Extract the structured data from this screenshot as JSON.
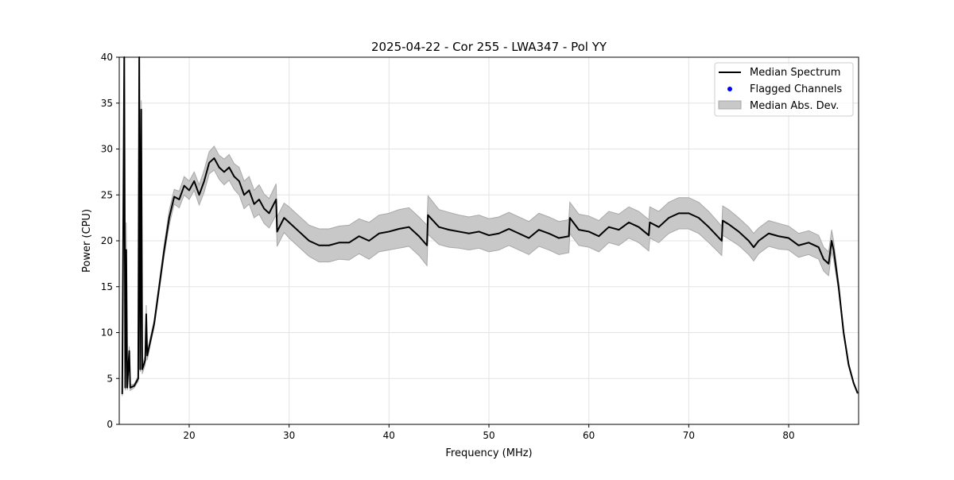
{
  "chart_data": {
    "type": "line",
    "title": "2025-04-22 - Cor 255 - LWA347 - Pol YY",
    "xlabel": "Frequency (MHz)",
    "ylabel": "Power (CPU)",
    "xlim": [
      13,
      87
    ],
    "ylim": [
      0,
      40
    ],
    "xticks": [
      20,
      30,
      40,
      50,
      60,
      70,
      80
    ],
    "yticks": [
      0,
      5,
      10,
      15,
      20,
      25,
      30,
      35,
      40
    ],
    "grid": true,
    "legend": {
      "placement": "top-right",
      "entries": [
        "Median Spectrum",
        "Flagged Channels",
        "Median Abs. Dev."
      ]
    },
    "colors": {
      "median": "#000000",
      "flagged": "#0000ff",
      "mad_fill": "#c8c8c8",
      "mad_edge": "#a0a0a0"
    },
    "series_fields": [
      "frequency_mhz",
      "median_power",
      "median_abs_dev"
    ],
    "points": [
      [
        13.3,
        3.3,
        0.2
      ],
      [
        13.5,
        40,
        0.5
      ],
      [
        13.6,
        4,
        0.3
      ],
      [
        13.7,
        19,
        3
      ],
      [
        13.8,
        4,
        0.3
      ],
      [
        14.0,
        8,
        0.5
      ],
      [
        14.1,
        4,
        0.3
      ],
      [
        14.5,
        4.2,
        0.2
      ],
      [
        14.9,
        5,
        0.3
      ],
      [
        15.0,
        40,
        0.5
      ],
      [
        15.1,
        6,
        0.3
      ],
      [
        15.2,
        34.3,
        1
      ],
      [
        15.3,
        6,
        0.5
      ],
      [
        15.6,
        7,
        0.5
      ],
      [
        15.7,
        12,
        1
      ],
      [
        15.8,
        7.5,
        0.5
      ],
      [
        16,
        8.5,
        0.4
      ],
      [
        16.5,
        11,
        0.4
      ],
      [
        17,
        15,
        0.5
      ],
      [
        17.5,
        19,
        0.6
      ],
      [
        18,
        22.5,
        0.8
      ],
      [
        18.5,
        24.8,
        0.8
      ],
      [
        19,
        24.5,
        0.9
      ],
      [
        19.5,
        26,
        1
      ],
      [
        20,
        25.5,
        1
      ],
      [
        20.5,
        26.5,
        1
      ],
      [
        21,
        25,
        1.1
      ],
      [
        21.5,
        26.5,
        1.2
      ],
      [
        22,
        28.5,
        1.2
      ],
      [
        22.5,
        29,
        1.3
      ],
      [
        23,
        28,
        1.3
      ],
      [
        23.5,
        27.5,
        1.4
      ],
      [
        24,
        28,
        1.4
      ],
      [
        24.5,
        27,
        1.4
      ],
      [
        25,
        26.5,
        1.5
      ],
      [
        25.5,
        25,
        1.5
      ],
      [
        26,
        25.5,
        1.5
      ],
      [
        26.5,
        24,
        1.5
      ],
      [
        27,
        24.5,
        1.6
      ],
      [
        27.5,
        23.5,
        1.6
      ],
      [
        28,
        23,
        1.6
      ],
      [
        28.7,
        24.5,
        1.7
      ],
      [
        28.8,
        21,
        1.6
      ],
      [
        29.5,
        22.5,
        1.6
      ],
      [
        30,
        22,
        1.7
      ],
      [
        31,
        21,
        1.7
      ],
      [
        32,
        20,
        1.7
      ],
      [
        33,
        19.5,
        1.8
      ],
      [
        34,
        19.5,
        1.8
      ],
      [
        35,
        19.8,
        1.8
      ],
      [
        36,
        19.8,
        1.9
      ],
      [
        37,
        20.5,
        1.9
      ],
      [
        38,
        20,
        2
      ],
      [
        39,
        20.8,
        2
      ],
      [
        40,
        21,
        2
      ],
      [
        41,
        21.3,
        2.1
      ],
      [
        42,
        21.5,
        2.1
      ],
      [
        43,
        20.5,
        2.1
      ],
      [
        43.8,
        19.5,
        2.2
      ],
      [
        43.9,
        22.8,
        2.1
      ],
      [
        45,
        21.5,
        1.9
      ],
      [
        46,
        21.2,
        1.9
      ],
      [
        47,
        21,
        1.8
      ],
      [
        48,
        20.8,
        1.8
      ],
      [
        49,
        21,
        1.8
      ],
      [
        50,
        20.6,
        1.8
      ],
      [
        51,
        20.8,
        1.8
      ],
      [
        52,
        21.3,
        1.8
      ],
      [
        53,
        20.8,
        1.8
      ],
      [
        54,
        20.3,
        1.8
      ],
      [
        55,
        21.2,
        1.8
      ],
      [
        56,
        20.8,
        1.8
      ],
      [
        57,
        20.3,
        1.8
      ],
      [
        58,
        20.5,
        1.8
      ],
      [
        58.1,
        22.5,
        1.7
      ],
      [
        59,
        21.2,
        1.7
      ],
      [
        60,
        21,
        1.7
      ],
      [
        61,
        20.5,
        1.7
      ],
      [
        62,
        21.5,
        1.7
      ],
      [
        63,
        21.2,
        1.7
      ],
      [
        64,
        22,
        1.7
      ],
      [
        65,
        21.5,
        1.7
      ],
      [
        66,
        20.6,
        1.7
      ],
      [
        66.1,
        22,
        1.7
      ],
      [
        67,
        21.5,
        1.7
      ],
      [
        68,
        22.5,
        1.7
      ],
      [
        69,
        23,
        1.7
      ],
      [
        70,
        23,
        1.7
      ],
      [
        71,
        22.5,
        1.7
      ],
      [
        72,
        21.5,
        1.7
      ],
      [
        73.3,
        20,
        1.6
      ],
      [
        73.4,
        22.2,
        1.6
      ],
      [
        74,
        21.8,
        1.6
      ],
      [
        75,
        21,
        1.5
      ],
      [
        76,
        20,
        1.5
      ],
      [
        76.5,
        19.3,
        1.5
      ],
      [
        77,
        20,
        1.4
      ],
      [
        78,
        20.8,
        1.4
      ],
      [
        79,
        20.5,
        1.4
      ],
      [
        80,
        20.3,
        1.3
      ],
      [
        81,
        19.5,
        1.3
      ],
      [
        82,
        19.8,
        1.3
      ],
      [
        83,
        19.3,
        1.3
      ],
      [
        83.5,
        18,
        1.3
      ],
      [
        84,
        17.5,
        1.3
      ],
      [
        84.3,
        20,
        1.2
      ],
      [
        84.5,
        19,
        1
      ],
      [
        85,
        15,
        0.5
      ],
      [
        85.5,
        10,
        0.3
      ],
      [
        86,
        6.5,
        0.2
      ],
      [
        86.5,
        4.5,
        0.1
      ],
      [
        86.9,
        3.4,
        0.1
      ]
    ]
  }
}
